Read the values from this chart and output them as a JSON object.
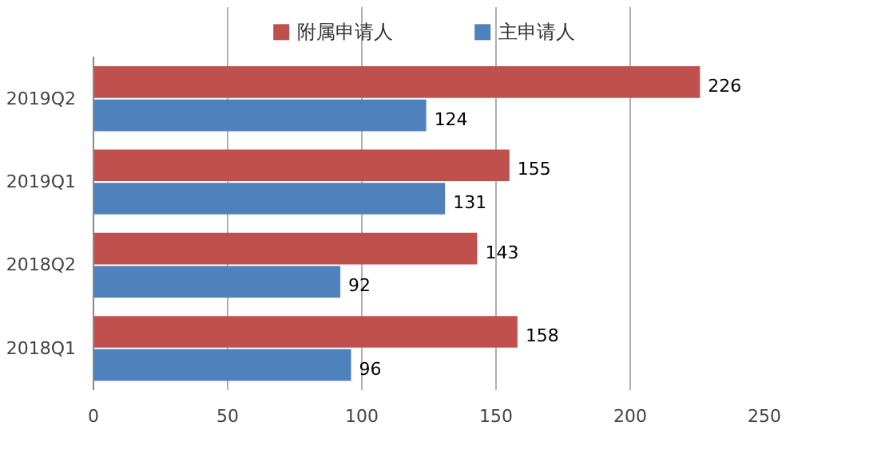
{
  "chart_data": {
    "type": "bar",
    "orientation": "horizontal",
    "categories": [
      "2019Q2",
      "2019Q1",
      "2018Q2",
      "2018Q1"
    ],
    "series": [
      {
        "name": "附属申请人",
        "color": "#c0504d",
        "values": [
          226,
          155,
          143,
          158
        ]
      },
      {
        "name": "主申请人",
        "color": "#4f81bd",
        "values": [
          124,
          131,
          92,
          96
        ]
      }
    ],
    "xlim": [
      0,
      250
    ],
    "xticks": [
      0,
      50,
      100,
      150,
      200,
      250
    ],
    "grid": "x",
    "legend": "top",
    "data_labels": true
  }
}
